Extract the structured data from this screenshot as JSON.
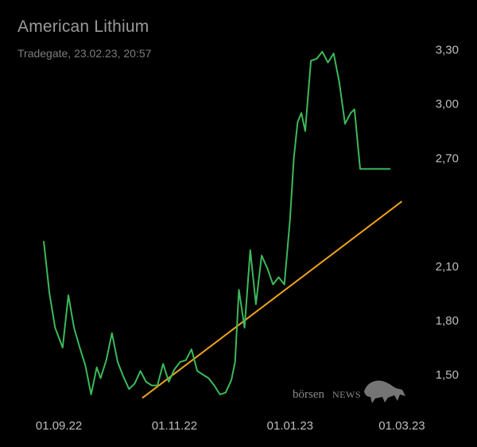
{
  "header": {
    "title": "American Lithium",
    "subtitle": "Tradegate, 23.02.23, 20:57"
  },
  "watermark": {
    "part1": "börsen",
    "part2": "NEWS",
    "icon": "bull-icon"
  },
  "colors": {
    "background": "#000000",
    "price_line": "#3cb95a",
    "trend_line": "#f2a21d",
    "text": "#bdbdbd"
  },
  "chart_data": {
    "type": "line",
    "title": "American Lithium",
    "subtitle": "Tradegate, 23.02.23, 20:57",
    "xlabel": "",
    "ylabel": "",
    "x_ticks": [
      "01.09.22",
      "01.11.22",
      "01.01.23",
      "01.03.23"
    ],
    "y_ticks": [
      "1,50",
      "1,80",
      "2,10",
      "2,70",
      "3,00",
      "3,30"
    ],
    "y_tick_values": [
      1.5,
      1.8,
      2.1,
      2.7,
      3.0,
      3.3
    ],
    "ylim": [
      1.35,
      3.4
    ],
    "xlim": [
      "2022-08-24",
      "2023-03-05"
    ],
    "grid": false,
    "y_axis_position": "right",
    "series": [
      {
        "color": "#3cb95a",
        "x": [
          "2022-08-24",
          "2022-08-27",
          "2022-08-30",
          "2022-09-03",
          "2022-09-06",
          "2022-09-09",
          "2022-09-12",
          "2022-09-15",
          "2022-09-18",
          "2022-09-21",
          "2022-09-23",
          "2022-09-26",
          "2022-09-29",
          "2022-10-02",
          "2022-10-05",
          "2022-10-08",
          "2022-10-11",
          "2022-10-14",
          "2022-10-17",
          "2022-10-20",
          "2022-10-23",
          "2022-10-26",
          "2022-10-29",
          "2022-11-01",
          "2022-11-04",
          "2022-11-07",
          "2022-11-10",
          "2022-11-13",
          "2022-11-16",
          "2022-11-19",
          "2022-11-22",
          "2022-11-25",
          "2022-11-28",
          "2022-12-01",
          "2022-12-03",
          "2022-12-05",
          "2022-12-08",
          "2022-12-11",
          "2022-12-14",
          "2022-12-17",
          "2022-12-20",
          "2022-12-23",
          "2022-12-26",
          "2022-12-29",
          "2023-01-01",
          "2023-01-03",
          "2023-01-05",
          "2023-01-07",
          "2023-01-09",
          "2023-01-12",
          "2023-01-15",
          "2023-01-18",
          "2023-01-21",
          "2023-01-24",
          "2023-01-27",
          "2023-01-30",
          "2023-02-02",
          "2023-02-04",
          "2023-02-07",
          "2023-02-10",
          "2023-02-13",
          "2023-02-16",
          "2023-02-19",
          "2023-02-23"
        ],
        "y": [
          2.24,
          1.95,
          1.76,
          1.65,
          1.94,
          1.76,
          1.65,
          1.55,
          1.39,
          1.54,
          1.48,
          1.58,
          1.73,
          1.57,
          1.49,
          1.42,
          1.45,
          1.52,
          1.46,
          1.44,
          1.44,
          1.56,
          1.46,
          1.53,
          1.57,
          1.58,
          1.64,
          1.52,
          1.5,
          1.48,
          1.44,
          1.39,
          1.4,
          1.47,
          1.57,
          1.97,
          1.76,
          2.19,
          1.89,
          2.16,
          2.09,
          2.0,
          2.04,
          2.0,
          2.36,
          2.7,
          2.9,
          2.95,
          2.85,
          3.24,
          3.25,
          3.29,
          3.23,
          3.28,
          3.12,
          2.89,
          2.95,
          2.97,
          2.64,
          2.64,
          2.64,
          2.64,
          2.64,
          2.64
        ]
      }
    ],
    "trendline": {
      "color": "#f2a21d",
      "x": [
        "2022-10-15",
        "2023-03-01"
      ],
      "y": [
        1.37,
        2.46
      ]
    }
  }
}
